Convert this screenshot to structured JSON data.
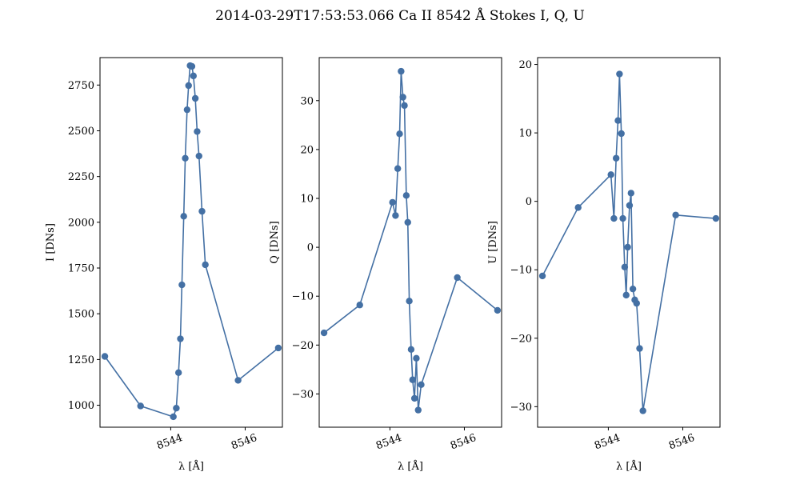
{
  "title": "2014-03-29T17:53:53.066 Ca II 8542 Å Stokes I, Q, U",
  "colors": {
    "series": "#4470a4",
    "axis": "#000000"
  },
  "chart_data": [
    {
      "type": "line",
      "marker": "circle",
      "xlabel": "λ [Å]",
      "ylabel": "I [DNs]",
      "xlim": [
        8542.1,
        8547.0
      ],
      "ylim": [
        880,
        2900
      ],
      "xticks": [
        8544,
        8546
      ],
      "yticks": [
        1000,
        1250,
        1500,
        1750,
        2000,
        2250,
        2500,
        2750
      ],
      "points": [
        {
          "x": 8542.23,
          "y": 1267
        },
        {
          "x": 8543.19,
          "y": 996
        },
        {
          "x": 8544.07,
          "y": 937
        },
        {
          "x": 8544.15,
          "y": 984
        },
        {
          "x": 8544.21,
          "y": 1178
        },
        {
          "x": 8544.26,
          "y": 1363
        },
        {
          "x": 8544.3,
          "y": 1658
        },
        {
          "x": 8544.35,
          "y": 2033
        },
        {
          "x": 8544.39,
          "y": 2350
        },
        {
          "x": 8544.44,
          "y": 2615
        },
        {
          "x": 8544.48,
          "y": 2747
        },
        {
          "x": 8544.52,
          "y": 2856
        },
        {
          "x": 8544.57,
          "y": 2852
        },
        {
          "x": 8544.61,
          "y": 2800
        },
        {
          "x": 8544.66,
          "y": 2677
        },
        {
          "x": 8544.71,
          "y": 2496
        },
        {
          "x": 8544.76,
          "y": 2362
        },
        {
          "x": 8544.84,
          "y": 2060
        },
        {
          "x": 8544.93,
          "y": 1768
        },
        {
          "x": 8545.81,
          "y": 1136
        },
        {
          "x": 8546.89,
          "y": 1313
        }
      ]
    },
    {
      "type": "line",
      "marker": "circle",
      "xlabel": "λ [Å]",
      "ylabel": "Q [DNs]",
      "xlim": [
        8542.1,
        8547.0
      ],
      "ylim": [
        -36.8,
        38.8
      ],
      "xticks": [
        8544,
        8546
      ],
      "yticks": [
        -30,
        -20,
        -10,
        0,
        10,
        20,
        30
      ],
      "points": [
        {
          "x": 8542.23,
          "y": -17.5
        },
        {
          "x": 8543.19,
          "y": -11.8
        },
        {
          "x": 8544.07,
          "y": 9.2
        },
        {
          "x": 8544.15,
          "y": 6.5
        },
        {
          "x": 8544.21,
          "y": 16.1
        },
        {
          "x": 8544.26,
          "y": 23.2
        },
        {
          "x": 8544.3,
          "y": 36.0
        },
        {
          "x": 8544.35,
          "y": 30.7
        },
        {
          "x": 8544.39,
          "y": 29.0
        },
        {
          "x": 8544.44,
          "y": 10.6
        },
        {
          "x": 8544.48,
          "y": 5.1
        },
        {
          "x": 8544.52,
          "y": -11.0
        },
        {
          "x": 8544.57,
          "y": -20.9
        },
        {
          "x": 8544.61,
          "y": -27.1
        },
        {
          "x": 8544.66,
          "y": -30.9
        },
        {
          "x": 8544.71,
          "y": -22.7
        },
        {
          "x": 8544.76,
          "y": -33.3
        },
        {
          "x": 8544.84,
          "y": -28.1
        },
        {
          "x": 8545.81,
          "y": -6.2
        },
        {
          "x": 8546.89,
          "y": -12.9
        }
      ]
    },
    {
      "type": "line",
      "marker": "circle",
      "xlabel": "λ [Å]",
      "ylabel": "U [DNs]",
      "xlim": [
        8542.1,
        8547.0
      ],
      "ylim": [
        -33.0,
        21.0
      ],
      "xticks": [
        8544,
        8546
      ],
      "yticks": [
        -30,
        -20,
        -10,
        0,
        10,
        20
      ],
      "points": [
        {
          "x": 8542.23,
          "y": -10.9
        },
        {
          "x": 8543.19,
          "y": -0.9
        },
        {
          "x": 8544.07,
          "y": 3.9
        },
        {
          "x": 8544.15,
          "y": -2.5
        },
        {
          "x": 8544.21,
          "y": 6.3
        },
        {
          "x": 8544.26,
          "y": 11.8
        },
        {
          "x": 8544.3,
          "y": 18.6
        },
        {
          "x": 8544.35,
          "y": 9.9
        },
        {
          "x": 8544.39,
          "y": -2.5
        },
        {
          "x": 8544.44,
          "y": -9.6
        },
        {
          "x": 8544.48,
          "y": -13.7
        },
        {
          "x": 8544.52,
          "y": -6.7
        },
        {
          "x": 8544.57,
          "y": -0.6
        },
        {
          "x": 8544.61,
          "y": 1.2
        },
        {
          "x": 8544.66,
          "y": -12.8
        },
        {
          "x": 8544.71,
          "y": -14.4
        },
        {
          "x": 8544.76,
          "y": -14.9
        },
        {
          "x": 8544.84,
          "y": -21.5
        },
        {
          "x": 8544.93,
          "y": -30.6
        },
        {
          "x": 8545.81,
          "y": -2.0
        },
        {
          "x": 8546.89,
          "y": -2.5
        }
      ]
    }
  ]
}
